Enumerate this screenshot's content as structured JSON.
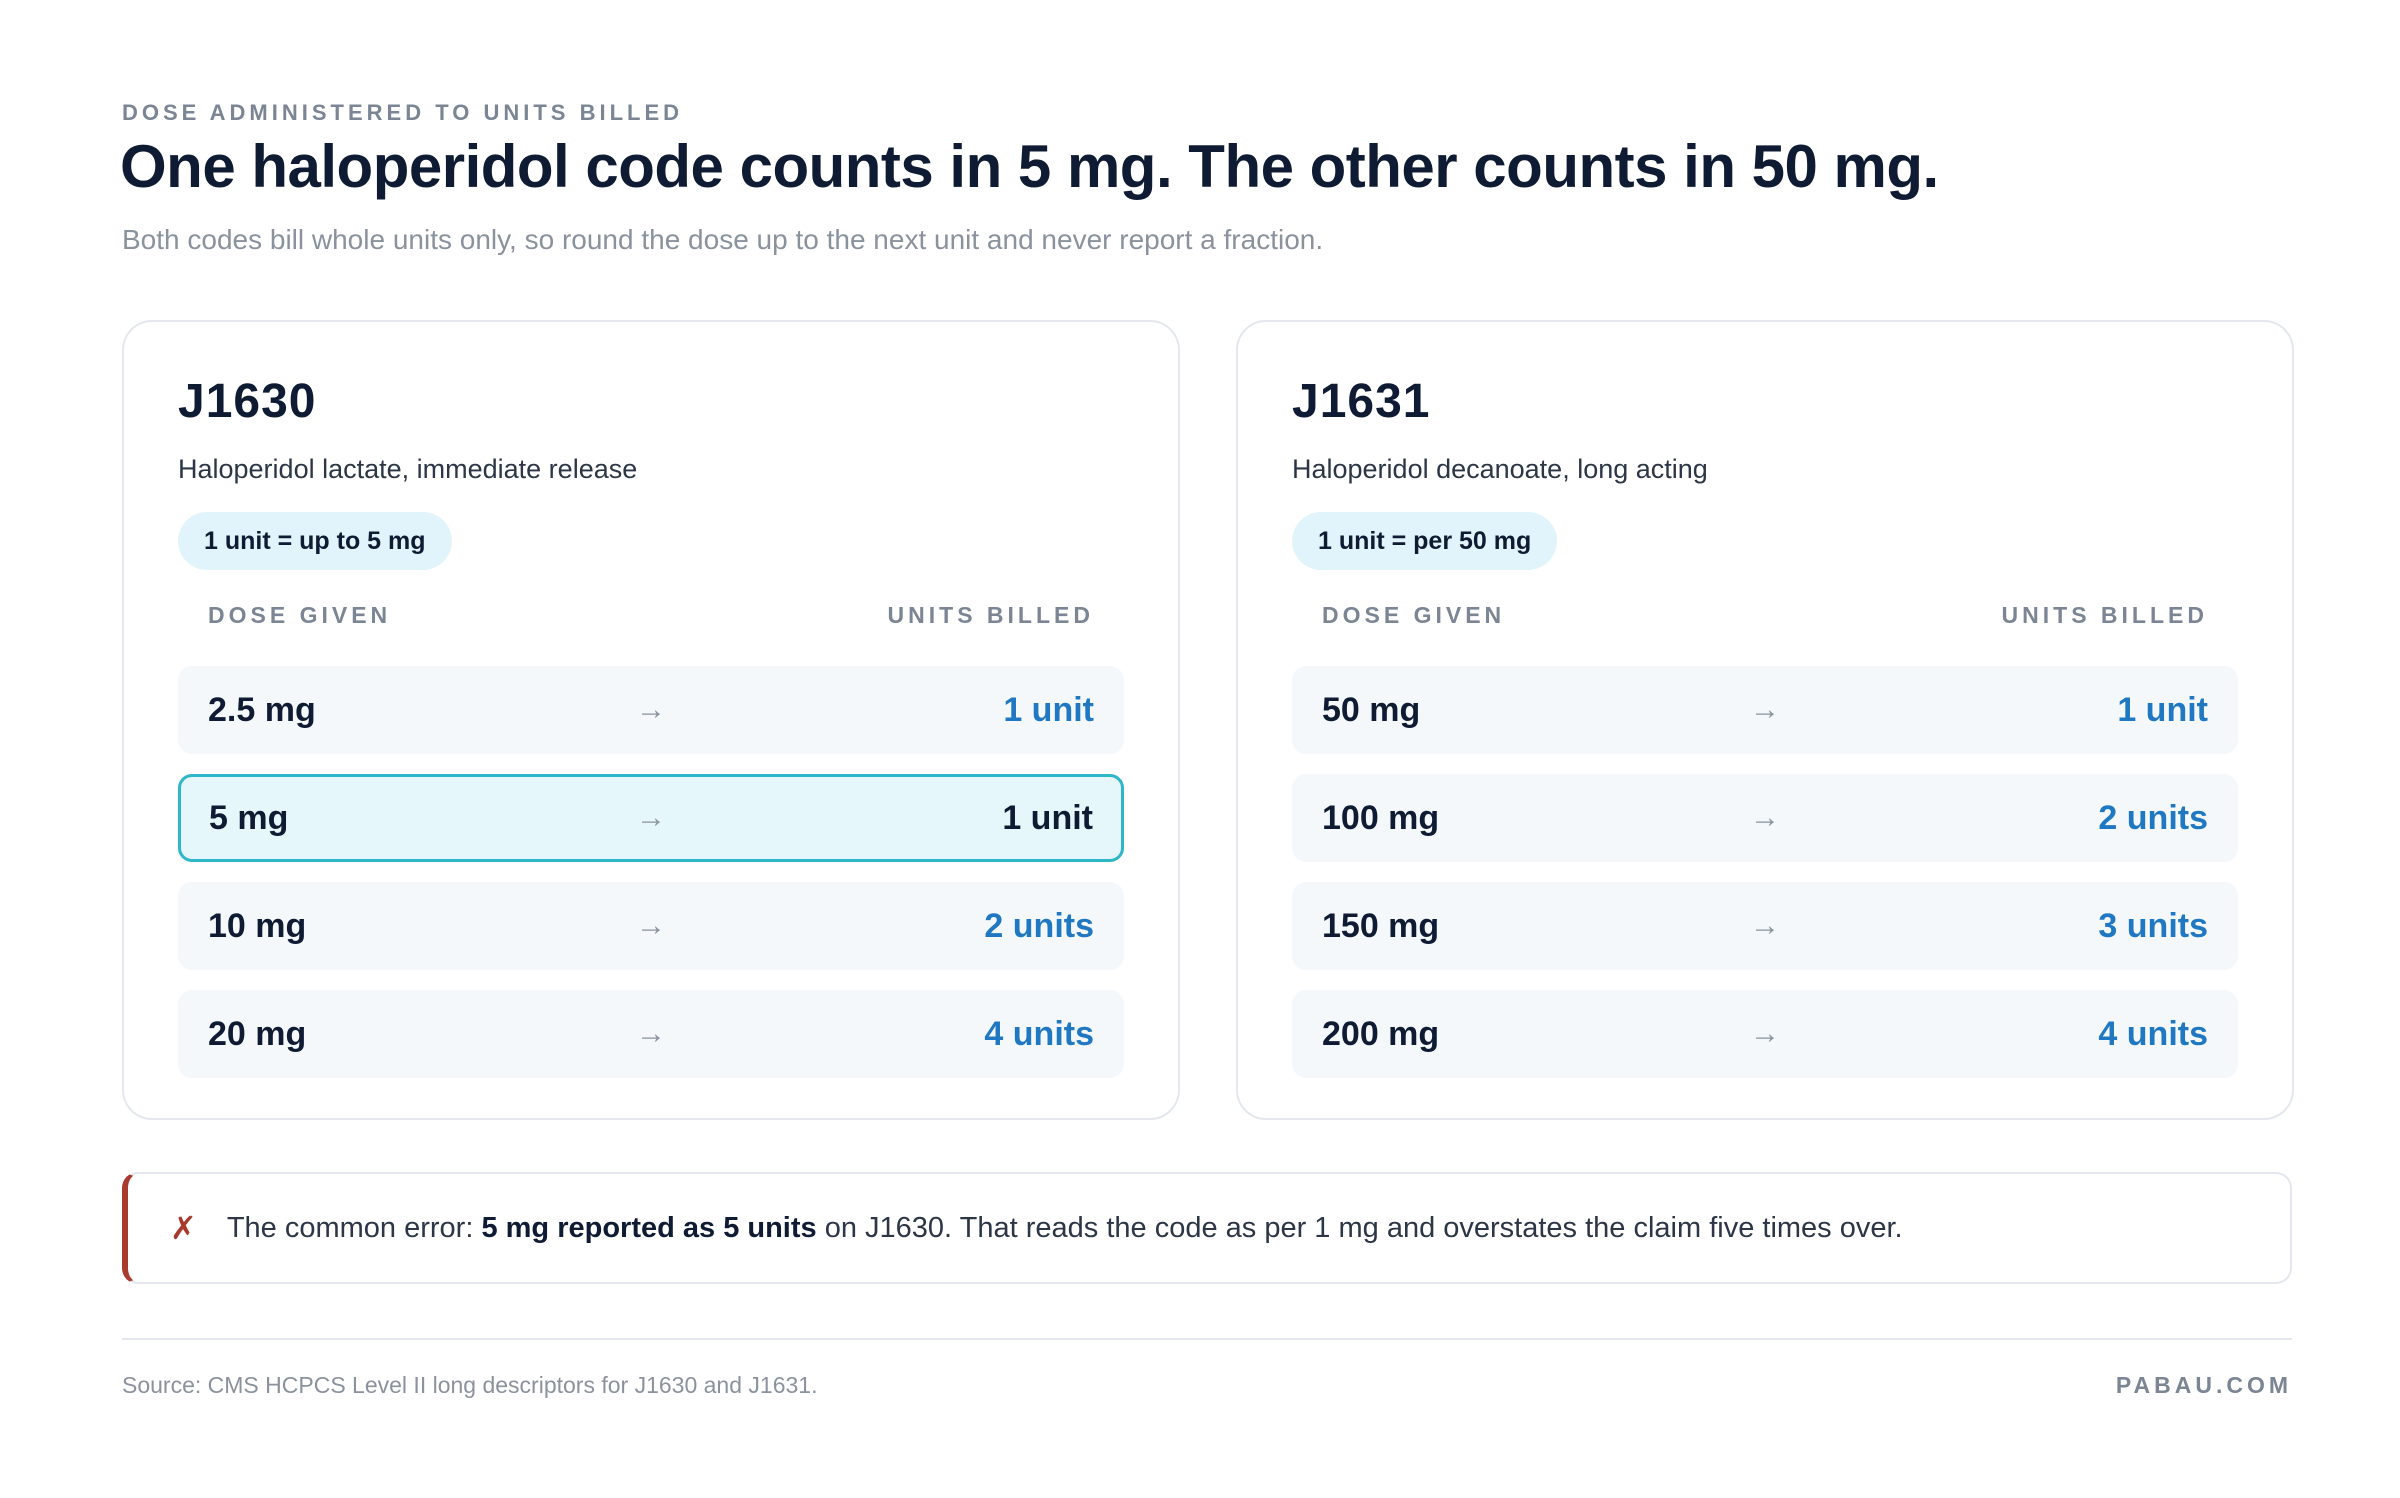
{
  "header": {
    "eyebrow": "DOSE ADMINISTERED TO UNITS BILLED",
    "title": "One haloperidol code counts in 5 mg. The other counts in 50 mg.",
    "subtitle": "Both codes bill whole units only, so round the dose up to the next unit and never report a fraction."
  },
  "cards": [
    {
      "code": "J1630",
      "description": "Haloperidol lactate, immediate release",
      "unit_rule": "1 unit = up to 5 mg",
      "col_dose": "DOSE GIVEN",
      "col_units": "UNITS BILLED",
      "rows": [
        {
          "dose": "2.5 mg",
          "arrow": "→",
          "units": "1 unit",
          "highlighted": false
        },
        {
          "dose": "5 mg",
          "arrow": "→",
          "units": "1 unit",
          "highlighted": true
        },
        {
          "dose": "10 mg",
          "arrow": "→",
          "units": "2 units",
          "highlighted": false
        },
        {
          "dose": "20 mg",
          "arrow": "→",
          "units": "4 units",
          "highlighted": false
        }
      ]
    },
    {
      "code": "J1631",
      "description": "Haloperidol decanoate, long acting",
      "unit_rule": "1 unit = per 50 mg",
      "col_dose": "DOSE GIVEN",
      "col_units": "UNITS BILLED",
      "rows": [
        {
          "dose": "50 mg",
          "arrow": "→",
          "units": "1 unit",
          "highlighted": false
        },
        {
          "dose": "100 mg",
          "arrow": "→",
          "units": "2 units",
          "highlighted": false
        },
        {
          "dose": "150 mg",
          "arrow": "→",
          "units": "3 units",
          "highlighted": false
        },
        {
          "dose": "200 mg",
          "arrow": "→",
          "units": "4 units",
          "highlighted": false
        }
      ]
    }
  ],
  "callout": {
    "icon": "✗",
    "lead": "The common error: ",
    "emphasis": "5 mg reported as 5 units",
    "rest": " on J1630. That reads the code as per 1 mg and overstates the claim five times over."
  },
  "footer": {
    "source": "Source: CMS HCPCS Level II long descriptors for J1630 and J1631.",
    "brand": "PABAU.COM"
  },
  "colors": {
    "accent_blue": "#1f78c1",
    "highlight_border": "#2db7c9",
    "error_red": "#a83a2e"
  }
}
